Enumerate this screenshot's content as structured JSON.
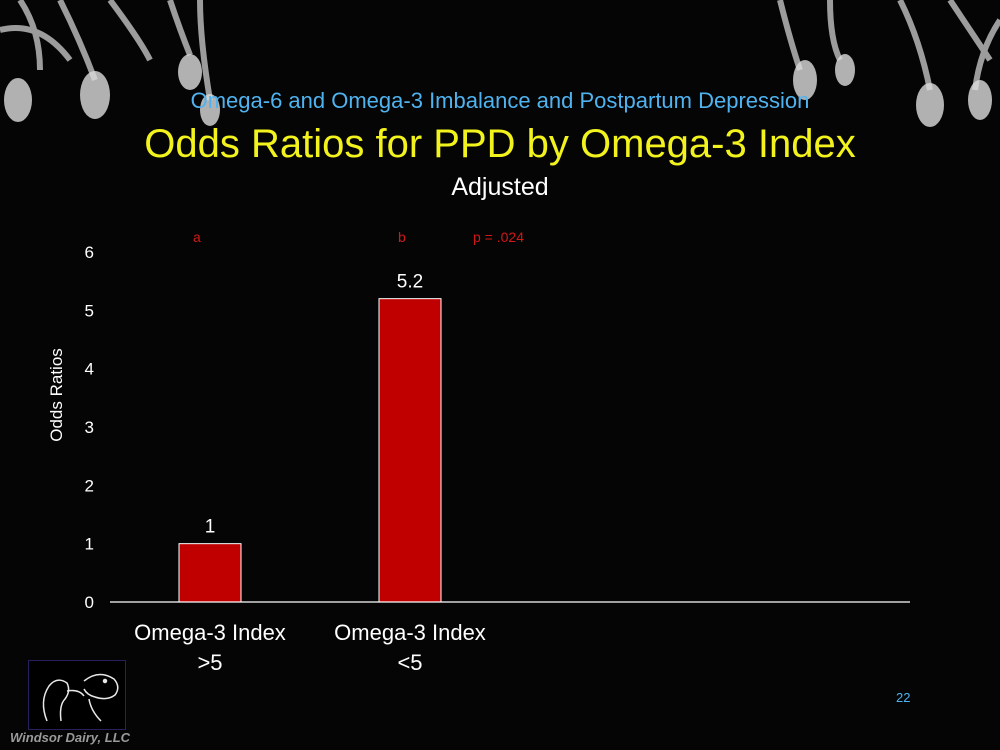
{
  "header": {
    "subtitle": "Omega-6 and Omega-3 Imbalance and Postpartum Depression",
    "title": "Odds Ratios for PPD by Omega-3 Index",
    "chart_subtitle": "Adjusted"
  },
  "annotations": {
    "group_a": "a",
    "group_b": "b",
    "p_value": "p = .024"
  },
  "chart_data": {
    "type": "bar",
    "title": "Adjusted",
    "ylabel": "Odds Ratios",
    "xlabel": "",
    "categories": [
      [
        "Omega-3 Index",
        ">5"
      ],
      [
        "Omega-3 Index",
        "<5"
      ]
    ],
    "values": [
      1,
      5.2
    ],
    "data_labels": [
      "1",
      "5.2"
    ],
    "ylim": [
      0,
      6
    ],
    "yticks": [
      0,
      1,
      2,
      3,
      4,
      5,
      6
    ],
    "grid": false,
    "bar_color": "#c00000"
  },
  "footer": {
    "slide_number": "22",
    "logo_text": "Windsor Dairy, LLC"
  },
  "colors": {
    "background": "#050505",
    "subtitle": "#4fb3f0",
    "title": "#f2f21c",
    "annotation": "#d01818",
    "axis": "#ffffff"
  },
  "icons": {
    "decor_left": "hanging-ornament-icon",
    "decor_right": "hanging-ornament-icon",
    "logo": "mother-child-sketch-icon"
  }
}
